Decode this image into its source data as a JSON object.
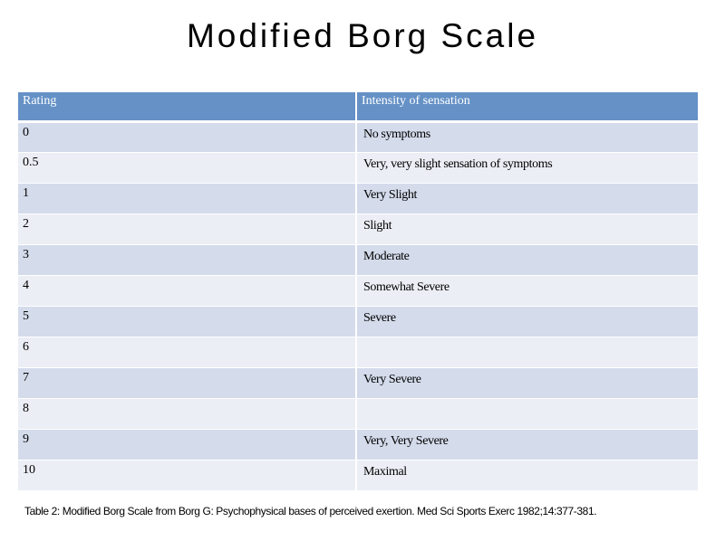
{
  "title": "Modified Borg Scale",
  "table": {
    "headers": [
      "Rating",
      "Intensity of sensation"
    ],
    "rows": [
      {
        "rating": "0",
        "intensity": "No symptoms"
      },
      {
        "rating": "0.5",
        "intensity": "Very, very slight sensation of symptoms"
      },
      {
        "rating": "1",
        "intensity": "Very Slight"
      },
      {
        "rating": "2",
        "intensity": "Slight"
      },
      {
        "rating": "3",
        "intensity": "Moderate"
      },
      {
        "rating": "4",
        "intensity": "Somewhat Severe"
      },
      {
        "rating": "5",
        "intensity": "Severe"
      },
      {
        "rating": "6",
        "intensity": ""
      },
      {
        "rating": "7",
        "intensity": "Very Severe"
      },
      {
        "rating": "8",
        "intensity": ""
      },
      {
        "rating": "9",
        "intensity": "Very, Very Severe"
      },
      {
        "rating": "10",
        "intensity": "Maximal"
      }
    ]
  },
  "caption": "Table 2: Modified Borg Scale from Borg G: Psychophysical bases of perceived exertion. Med Sci Sports Exerc 1982;14:377-381.",
  "colors": {
    "header_bg": "#6591c6",
    "row_dark": "#d4dbeb",
    "row_light": "#ebeef5"
  }
}
